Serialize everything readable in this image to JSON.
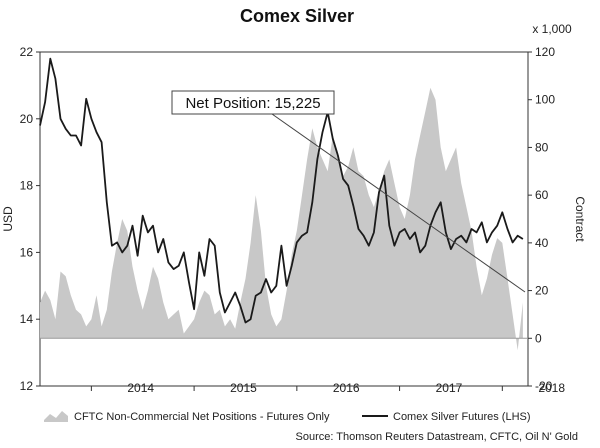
{
  "chart_data": {
    "type": "line",
    "title": "Comex Silver",
    "ylabel_left": "USD",
    "ylabel_right": "Contract",
    "right_multiplier": "x 1,000",
    "ylim_left": [
      12,
      22
    ],
    "ylim_right": [
      -20,
      120
    ],
    "yticks_left": [
      "12",
      "14",
      "16",
      "18",
      "20",
      "22"
    ],
    "yticks_right": [
      "-20",
      "0",
      "20",
      "40",
      "60",
      "80",
      "100",
      "120"
    ],
    "xlim": [
      2013.5,
      2018.25
    ],
    "xticks": [
      "2014",
      "2015",
      "2016",
      "2017",
      "2018"
    ],
    "annotation": "Net Position: 15,225",
    "source": "Source: Thomson Reuters Datastream, CFTC, Oil N' Gold",
    "colors": {
      "area": "#c8c8c8",
      "line": "#1a1a1a"
    },
    "series": [
      {
        "name": "CFTC Non-Commercial Net Positions - Futures Only",
        "type": "area",
        "axis": "right",
        "x": [
          2013.5,
          2013.55,
          2013.6,
          2013.65,
          2013.7,
          2013.75,
          2013.8,
          2013.85,
          2013.9,
          2013.95,
          2014.0,
          2014.05,
          2014.1,
          2014.15,
          2014.2,
          2014.25,
          2014.3,
          2014.35,
          2014.4,
          2014.45,
          2014.5,
          2014.55,
          2014.6,
          2014.65,
          2014.7,
          2014.75,
          2014.8,
          2014.85,
          2014.9,
          2014.95,
          2015.0,
          2015.05,
          2015.1,
          2015.15,
          2015.2,
          2015.25,
          2015.3,
          2015.35,
          2015.4,
          2015.45,
          2015.5,
          2015.55,
          2015.6,
          2015.65,
          2015.7,
          2015.75,
          2015.8,
          2015.85,
          2015.9,
          2015.95,
          2016.0,
          2016.05,
          2016.1,
          2016.15,
          2016.2,
          2016.25,
          2016.3,
          2016.35,
          2016.4,
          2016.45,
          2016.5,
          2016.55,
          2016.6,
          2016.65,
          2016.7,
          2016.75,
          2016.8,
          2016.85,
          2016.9,
          2016.95,
          2017.0,
          2017.05,
          2017.1,
          2017.15,
          2017.2,
          2017.25,
          2017.3,
          2017.35,
          2017.4,
          2017.45,
          2017.5,
          2017.55,
          2017.6,
          2017.65,
          2017.7,
          2017.75,
          2017.8,
          2017.85,
          2017.9,
          2017.95,
          2018.0,
          2018.05,
          2018.1,
          2018.15,
          2018.2
        ],
        "values": [
          15,
          20,
          16,
          8,
          28,
          26,
          18,
          12,
          10,
          5,
          8,
          18,
          5,
          12,
          28,
          40,
          50,
          45,
          30,
          20,
          12,
          20,
          30,
          25,
          15,
          8,
          10,
          12,
          2,
          5,
          8,
          15,
          20,
          18,
          10,
          12,
          5,
          8,
          4,
          15,
          25,
          40,
          60,
          45,
          22,
          10,
          5,
          8,
          20,
          35,
          45,
          60,
          75,
          88,
          80,
          75,
          70,
          85,
          78,
          68,
          72,
          80,
          70,
          68,
          60,
          55,
          62,
          70,
          75,
          65,
          55,
          50,
          60,
          75,
          85,
          95,
          105,
          100,
          80,
          70,
          75,
          80,
          65,
          55,
          45,
          30,
          18,
          25,
          35,
          42,
          40,
          25,
          10,
          -5,
          15
        ]
      },
      {
        "name": "Comex Silver Futures (LHS)",
        "type": "line",
        "axis": "left",
        "x": [
          2013.5,
          2013.55,
          2013.6,
          2013.65,
          2013.7,
          2013.75,
          2013.8,
          2013.85,
          2013.9,
          2013.95,
          2014.0,
          2014.05,
          2014.1,
          2014.15,
          2014.2,
          2014.25,
          2014.3,
          2014.35,
          2014.4,
          2014.45,
          2014.5,
          2014.55,
          2014.6,
          2014.65,
          2014.7,
          2014.75,
          2014.8,
          2014.85,
          2014.9,
          2014.95,
          2015.0,
          2015.05,
          2015.1,
          2015.15,
          2015.2,
          2015.25,
          2015.3,
          2015.35,
          2015.4,
          2015.45,
          2015.5,
          2015.55,
          2015.6,
          2015.65,
          2015.7,
          2015.75,
          2015.8,
          2015.85,
          2015.9,
          2015.95,
          2016.0,
          2016.05,
          2016.1,
          2016.15,
          2016.2,
          2016.25,
          2016.3,
          2016.35,
          2016.4,
          2016.45,
          2016.5,
          2016.55,
          2016.6,
          2016.65,
          2016.7,
          2016.75,
          2016.8,
          2016.85,
          2016.9,
          2016.95,
          2017.0,
          2017.05,
          2017.1,
          2017.15,
          2017.2,
          2017.25,
          2017.3,
          2017.35,
          2017.4,
          2017.45,
          2017.5,
          2017.55,
          2017.6,
          2017.65,
          2017.7,
          2017.75,
          2017.8,
          2017.85,
          2017.9,
          2017.95,
          2018.0,
          2018.05,
          2018.1,
          2018.15,
          2018.2
        ],
        "values": [
          19.8,
          20.5,
          21.8,
          21.2,
          20.0,
          19.7,
          19.5,
          19.5,
          19.2,
          20.6,
          20.0,
          19.6,
          19.3,
          17.5,
          16.2,
          16.3,
          16.0,
          16.2,
          16.8,
          15.9,
          17.1,
          16.6,
          16.8,
          16.0,
          16.4,
          15.7,
          15.5,
          15.6,
          16.0,
          15.1,
          14.3,
          16.0,
          15.3,
          16.4,
          16.2,
          14.8,
          14.2,
          14.5,
          14.8,
          14.4,
          13.9,
          14.0,
          14.7,
          14.8,
          15.2,
          14.8,
          15.0,
          16.2,
          15.0,
          15.6,
          16.3,
          16.5,
          16.6,
          17.5,
          18.8,
          19.6,
          20.2,
          19.4,
          18.9,
          18.2,
          18.0,
          17.4,
          16.7,
          16.5,
          16.2,
          16.6,
          17.8,
          18.3,
          16.8,
          16.2,
          16.6,
          16.7,
          16.4,
          16.6,
          16.0,
          16.2,
          16.8,
          17.2,
          17.5,
          16.6,
          16.1,
          16.4,
          16.5,
          16.3,
          16.7,
          16.6,
          16.9,
          16.3,
          16.6,
          16.8,
          17.2,
          16.7,
          16.3,
          16.5,
          16.4
        ]
      }
    ],
    "legend_position": "bottom"
  }
}
